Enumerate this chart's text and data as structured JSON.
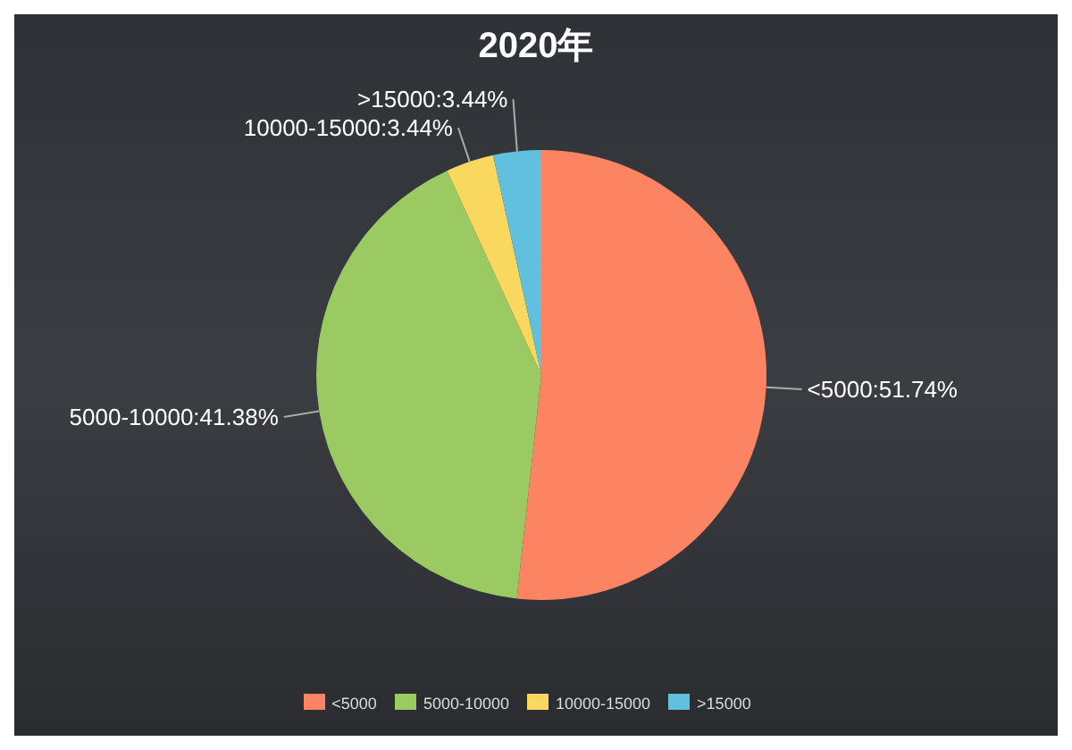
{
  "chart_data": {
    "type": "pie",
    "title": "2020年",
    "categories": [
      "<5000",
      "5000-10000",
      "10000-15000",
      ">15000"
    ],
    "values": [
      51.74,
      41.38,
      3.44,
      3.44
    ],
    "value_labels": [
      "<5000:51.74%",
      "5000-10000:41.38%",
      "10000-15000:3.44%",
      ">15000:3.44%"
    ],
    "colors": [
      "#fc8462",
      "#9bca63",
      "#fad860",
      "#60c0dd"
    ],
    "legend": "bottom"
  }
}
